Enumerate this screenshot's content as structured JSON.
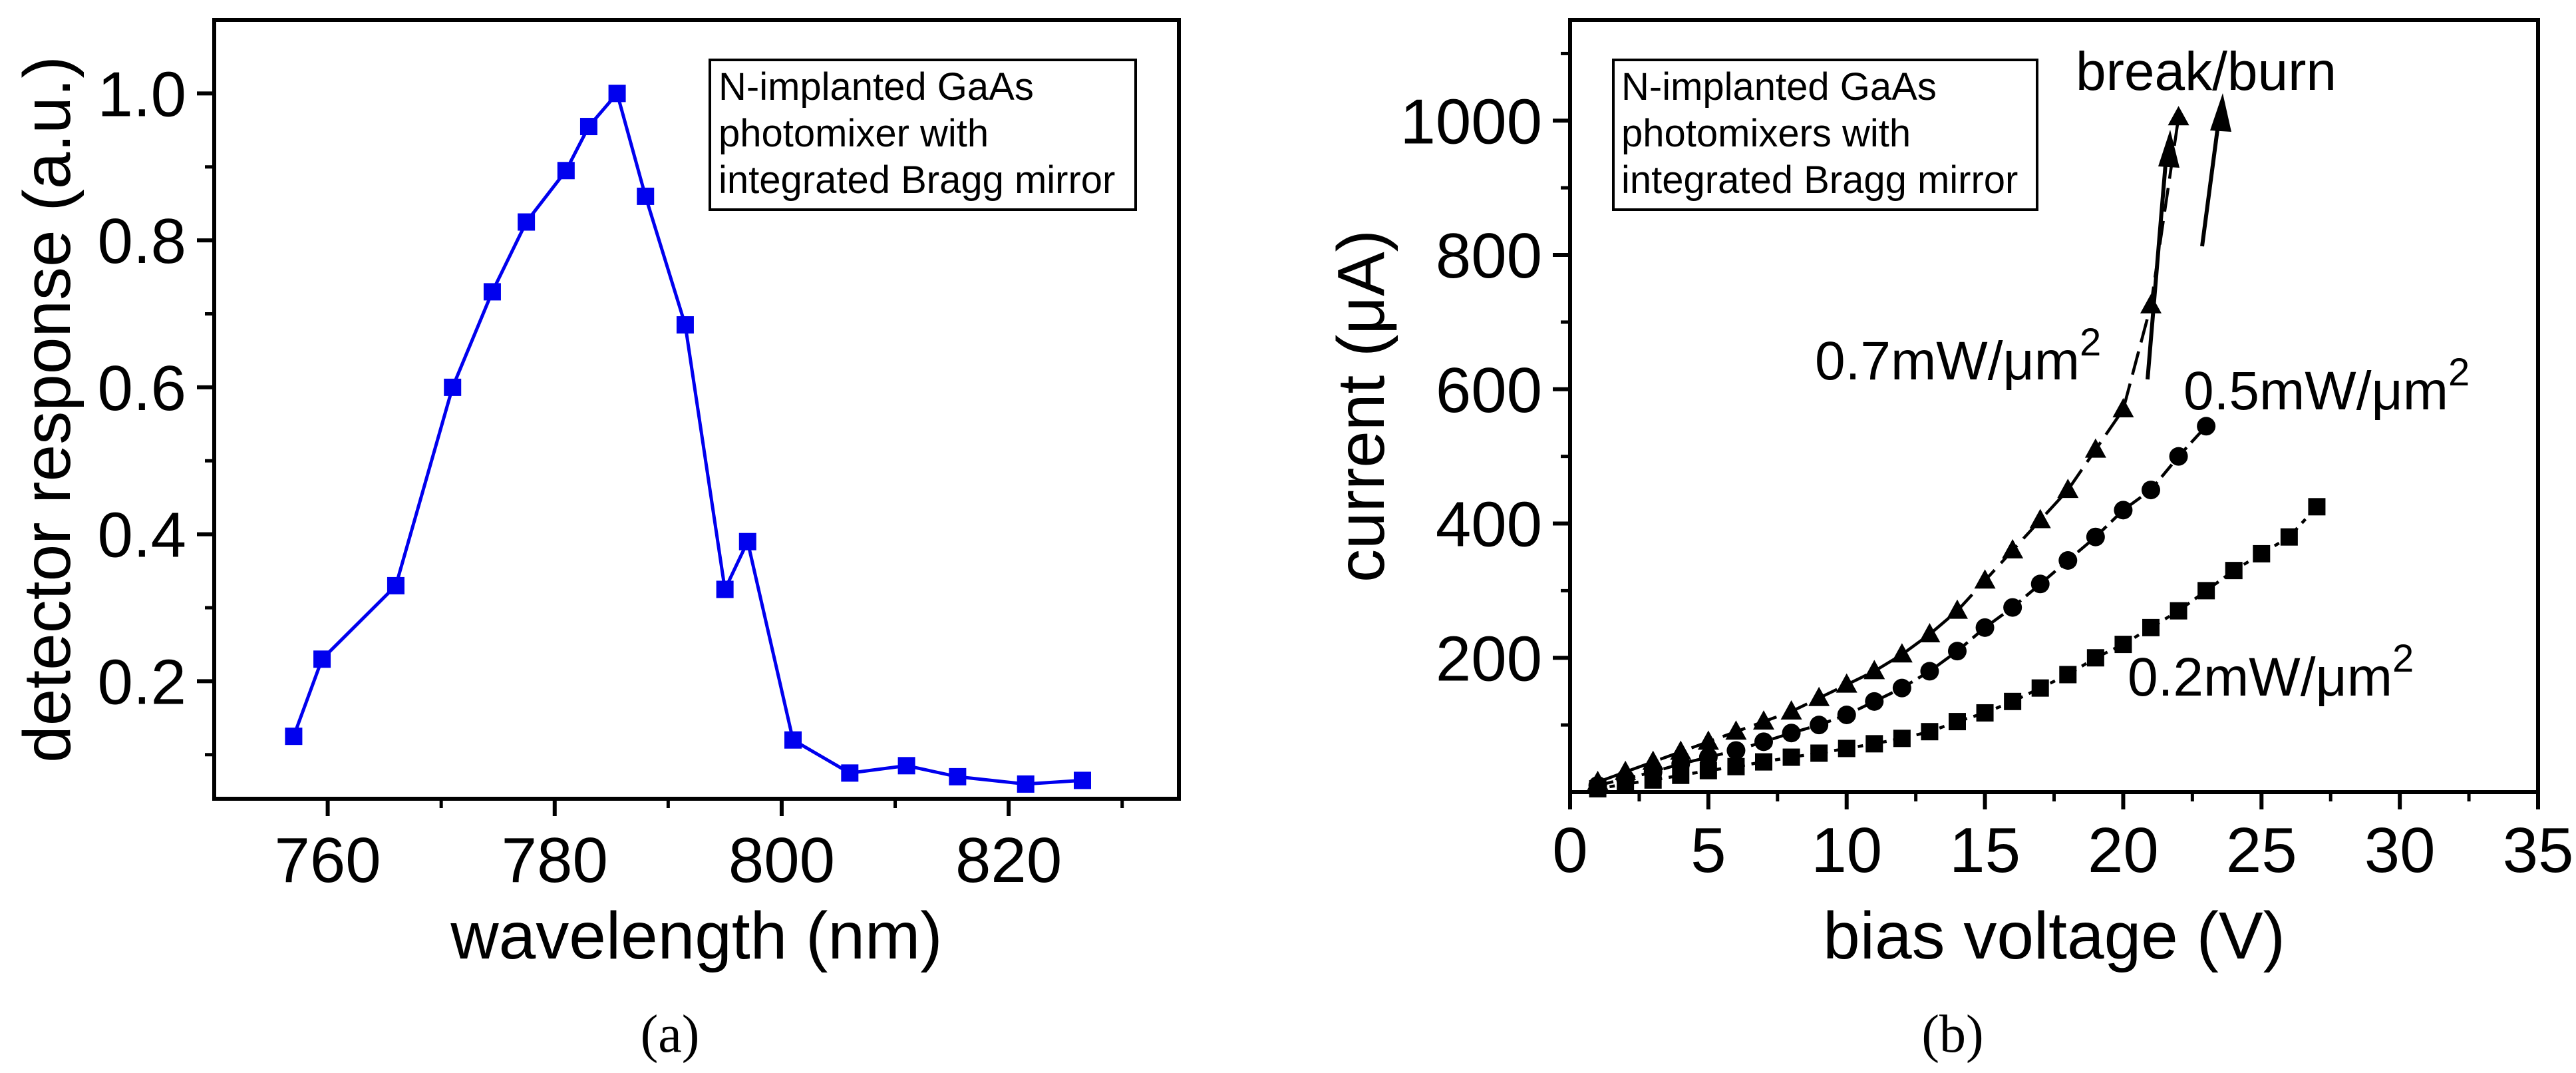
{
  "chart_data": [
    {
      "type": "line",
      "caption": "(a)",
      "xlabel": "wavelength (nm)",
      "ylabel": "detector response (a.u.)",
      "xlim": [
        750,
        835
      ],
      "ylim": [
        0.04,
        1.1
      ],
      "xticks": [
        760,
        780,
        800,
        820
      ],
      "yticks": [
        0.2,
        0.4,
        0.6,
        0.8,
        1.0
      ],
      "ytick_labels": [
        "0.2",
        "0.4",
        "0.6",
        "0.8",
        "1.0"
      ],
      "color": "#0000ee",
      "annotation": [
        "N-implanted GaAs",
        "photomixer with",
        "integrated Bragg mirror"
      ],
      "x": [
        757,
        759.5,
        766,
        771,
        774.5,
        777.5,
        781,
        783,
        785.5,
        788,
        791.5,
        795,
        797,
        801,
        806,
        811,
        815.5,
        821.5,
        826.5
      ],
      "y": [
        0.125,
        0.23,
        0.33,
        0.6,
        0.73,
        0.825,
        0.895,
        0.955,
        1.0,
        0.86,
        0.685,
        0.325,
        0.39,
        0.12,
        0.075,
        0.085,
        0.07,
        0.06,
        0.065
      ]
    },
    {
      "type": "line",
      "caption": "(b)",
      "xlabel": "bias voltage (V)",
      "ylabel": "current (μA)",
      "xlim": [
        0,
        35
      ],
      "ylim": [
        0,
        1150
      ],
      "xticks": [
        0,
        5,
        10,
        15,
        20,
        25,
        30,
        35
      ],
      "yticks": [
        200,
        400,
        600,
        800,
        1000
      ],
      "annotation": [
        "N-implanted GaAs",
        "photomixers with",
        "integrated Bragg mirror"
      ],
      "break_label": "break/burn",
      "series": [
        {
          "name": "0.7mW/μm",
          "superscript": "2",
          "marker": "triangle",
          "x": [
            1,
            2,
            3,
            4,
            5,
            6,
            7,
            8,
            9,
            10,
            11,
            12,
            13,
            14,
            15,
            16,
            17,
            18,
            19,
            20,
            21,
            22
          ],
          "y": [
            15,
            30,
            45,
            60,
            75,
            90,
            105,
            120,
            140,
            160,
            180,
            205,
            235,
            270,
            315,
            360,
            405,
            450,
            510,
            570,
            725,
            1005
          ]
        },
        {
          "name": "0.5mW/μm",
          "superscript": "2",
          "marker": "circle",
          "x": [
            1,
            2,
            3,
            4,
            5,
            6,
            7,
            8,
            9,
            10,
            11,
            12,
            13,
            14,
            15,
            16,
            17,
            18,
            19,
            20,
            21,
            22,
            23
          ],
          "y": [
            10,
            20,
            30,
            42,
            52,
            62,
            75,
            88,
            100,
            115,
            135,
            155,
            180,
            210,
            245,
            275,
            310,
            345,
            380,
            420,
            450,
            500,
            545
          ]
        },
        {
          "name": "0.2mW/μm",
          "superscript": "2",
          "marker": "square",
          "x": [
            1,
            2,
            3,
            4,
            5,
            6,
            7,
            8,
            9,
            10,
            11,
            12,
            13,
            14,
            15,
            16,
            17,
            18,
            19,
            20,
            21,
            22,
            23,
            24,
            25,
            26,
            27
          ],
          "y": [
            5,
            12,
            18,
            25,
            32,
            38,
            45,
            52,
            58,
            65,
            72,
            80,
            90,
            105,
            118,
            135,
            155,
            175,
            200,
            220,
            245,
            270,
            300,
            330,
            355,
            380,
            425
          ]
        }
      ]
    }
  ]
}
